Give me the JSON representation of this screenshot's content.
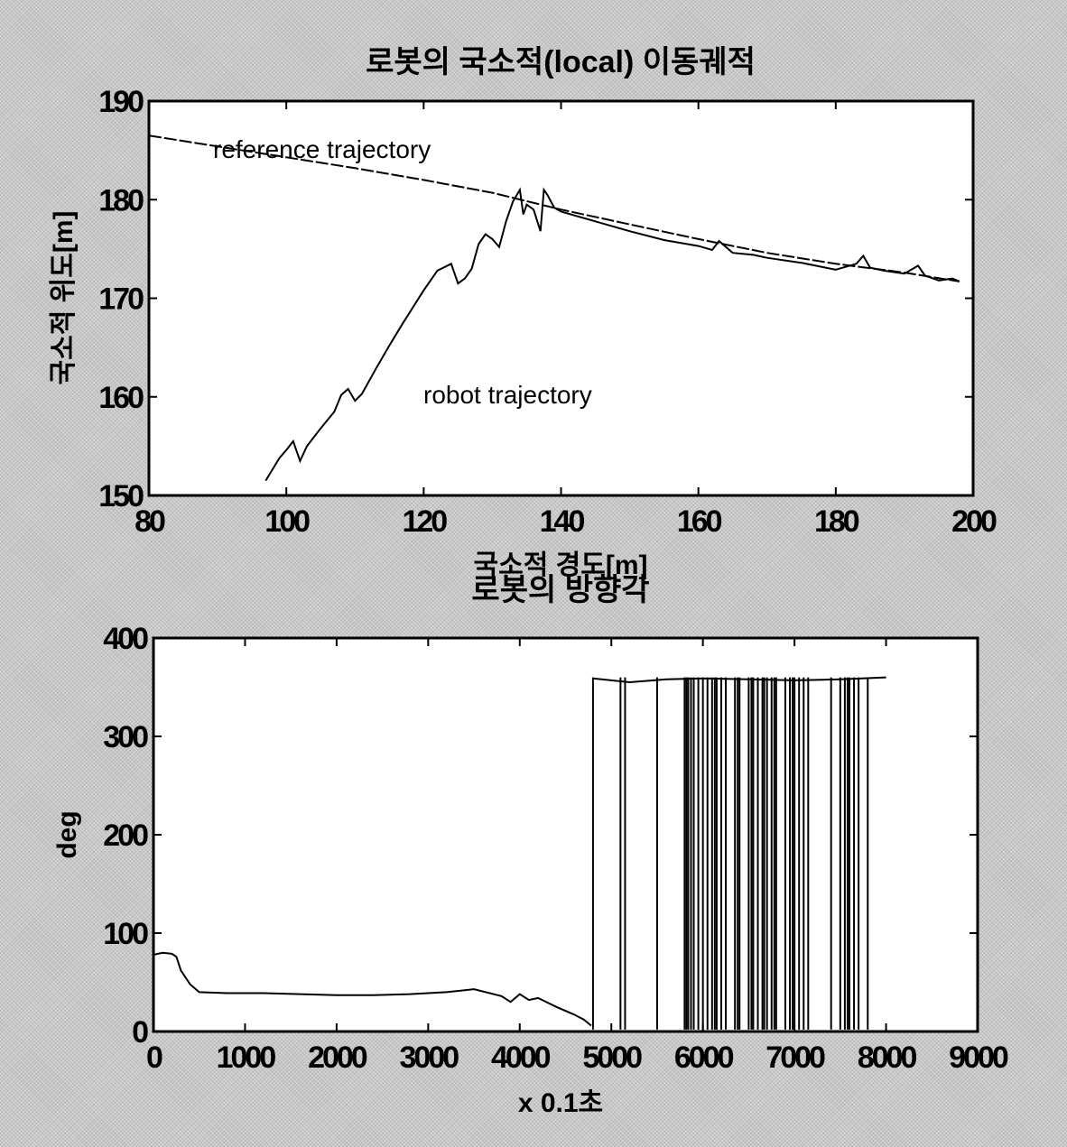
{
  "chart_data": [
    {
      "type": "line",
      "title": "로봇의 국소적(local) 이동궤적",
      "xlabel": "국소적 경도[m]",
      "ylabel": "국소적 위도[m]",
      "xlim": [
        80,
        200
      ],
      "ylim": [
        150,
        190
      ],
      "xticks": [
        "80",
        "100",
        "120",
        "140",
        "160",
        "180",
        "200"
      ],
      "yticks": [
        "150",
        "160",
        "170",
        "180",
        "190"
      ],
      "annotations": [
        "reference trajectory",
        "robot trajectory"
      ],
      "series": [
        {
          "name": "reference trajectory",
          "style": "dashed",
          "x": [
            80,
            90,
            100,
            110,
            120,
            130,
            140,
            150,
            160,
            170,
            180,
            190,
            198
          ],
          "y": [
            186.5,
            185.4,
            184.3,
            183.2,
            182.0,
            180.7,
            179.0,
            177.5,
            176.0,
            174.6,
            173.5,
            172.6,
            171.7
          ]
        },
        {
          "name": "robot trajectory",
          "style": "solid",
          "x": [
            97,
            99,
            100,
            101,
            102,
            103,
            105,
            107,
            108,
            109,
            110,
            111,
            113,
            115,
            117,
            120,
            122,
            124,
            125,
            126,
            127,
            128,
            129,
            130,
            131,
            132,
            133,
            134,
            134.5,
            135,
            136,
            137,
            137.5,
            138,
            139,
            140,
            145,
            150,
            155,
            160,
            162,
            163,
            165,
            168,
            170,
            175,
            180,
            183,
            184,
            185,
            187,
            190,
            192,
            193,
            195,
            197,
            198
          ],
          "y": [
            151.5,
            153.8,
            154.6,
            155.5,
            153.5,
            155.0,
            156.8,
            158.5,
            160.2,
            160.8,
            159.6,
            160.3,
            162.8,
            165.2,
            167.5,
            170.8,
            172.8,
            173.5,
            171.5,
            172.0,
            173.0,
            175.5,
            176.5,
            176.0,
            175.2,
            177.8,
            179.8,
            181.0,
            178.5,
            179.5,
            179.0,
            176.8,
            181.0,
            180.5,
            179.2,
            178.8,
            177.8,
            176.8,
            175.9,
            175.3,
            174.9,
            175.8,
            174.6,
            174.4,
            174.1,
            173.6,
            172.9,
            173.5,
            174.3,
            173.1,
            172.8,
            172.5,
            173.3,
            172.3,
            171.8,
            172.0,
            171.7
          ]
        }
      ]
    },
    {
      "type": "line",
      "title": "로봇의 방향각",
      "xlabel": "x 0.1초",
      "ylabel": "deg",
      "xlim": [
        0,
        9000
      ],
      "ylim": [
        0,
        400
      ],
      "xticks": [
        "0",
        "1000",
        "2000",
        "3000",
        "4000",
        "5000",
        "6000",
        "7000",
        "8000",
        "9000"
      ],
      "yticks": [
        "0",
        "100",
        "200",
        "300",
        "400"
      ],
      "series": [
        {
          "name": "",
          "x": [
            0,
            100,
            200,
            250,
            300,
            400,
            500,
            800,
            1200,
            1600,
            2000,
            2400,
            2800,
            3200,
            3500,
            3800,
            3900,
            4000,
            4100,
            4200,
            4400,
            4600,
            4700,
            4780
          ],
          "y": [
            78,
            80,
            79,
            76,
            62,
            48,
            40,
            39,
            39,
            38,
            37,
            37,
            38,
            40,
            43,
            36,
            30,
            38,
            32,
            34,
            25,
            17,
            12,
            6
          ],
          "jump_to": 360,
          "wrap_switch_x": [
            4800,
            5100,
            5150,
            5500,
            5800,
            5820,
            5840,
            5870,
            5900,
            5950,
            6000,
            6050,
            6100,
            6130,
            6150,
            6200,
            6250,
            6350,
            6380,
            6400,
            6500,
            6530,
            6550,
            6600,
            6650,
            6670,
            6700,
            6750,
            6780,
            6800,
            6900,
            6950,
            6980,
            7000,
            7050,
            7100,
            7150,
            7400,
            7500,
            7550,
            7580,
            7600,
            7650,
            7700,
            7800
          ],
          "high_segment": {
            "x": [
              4800,
              5200,
              5600,
              6000,
              6500,
              7000,
              7500,
              8000
            ],
            "y": [
              359,
              355,
              358,
              359,
              358,
              357,
              358,
              360
            ]
          }
        }
      ]
    }
  ]
}
